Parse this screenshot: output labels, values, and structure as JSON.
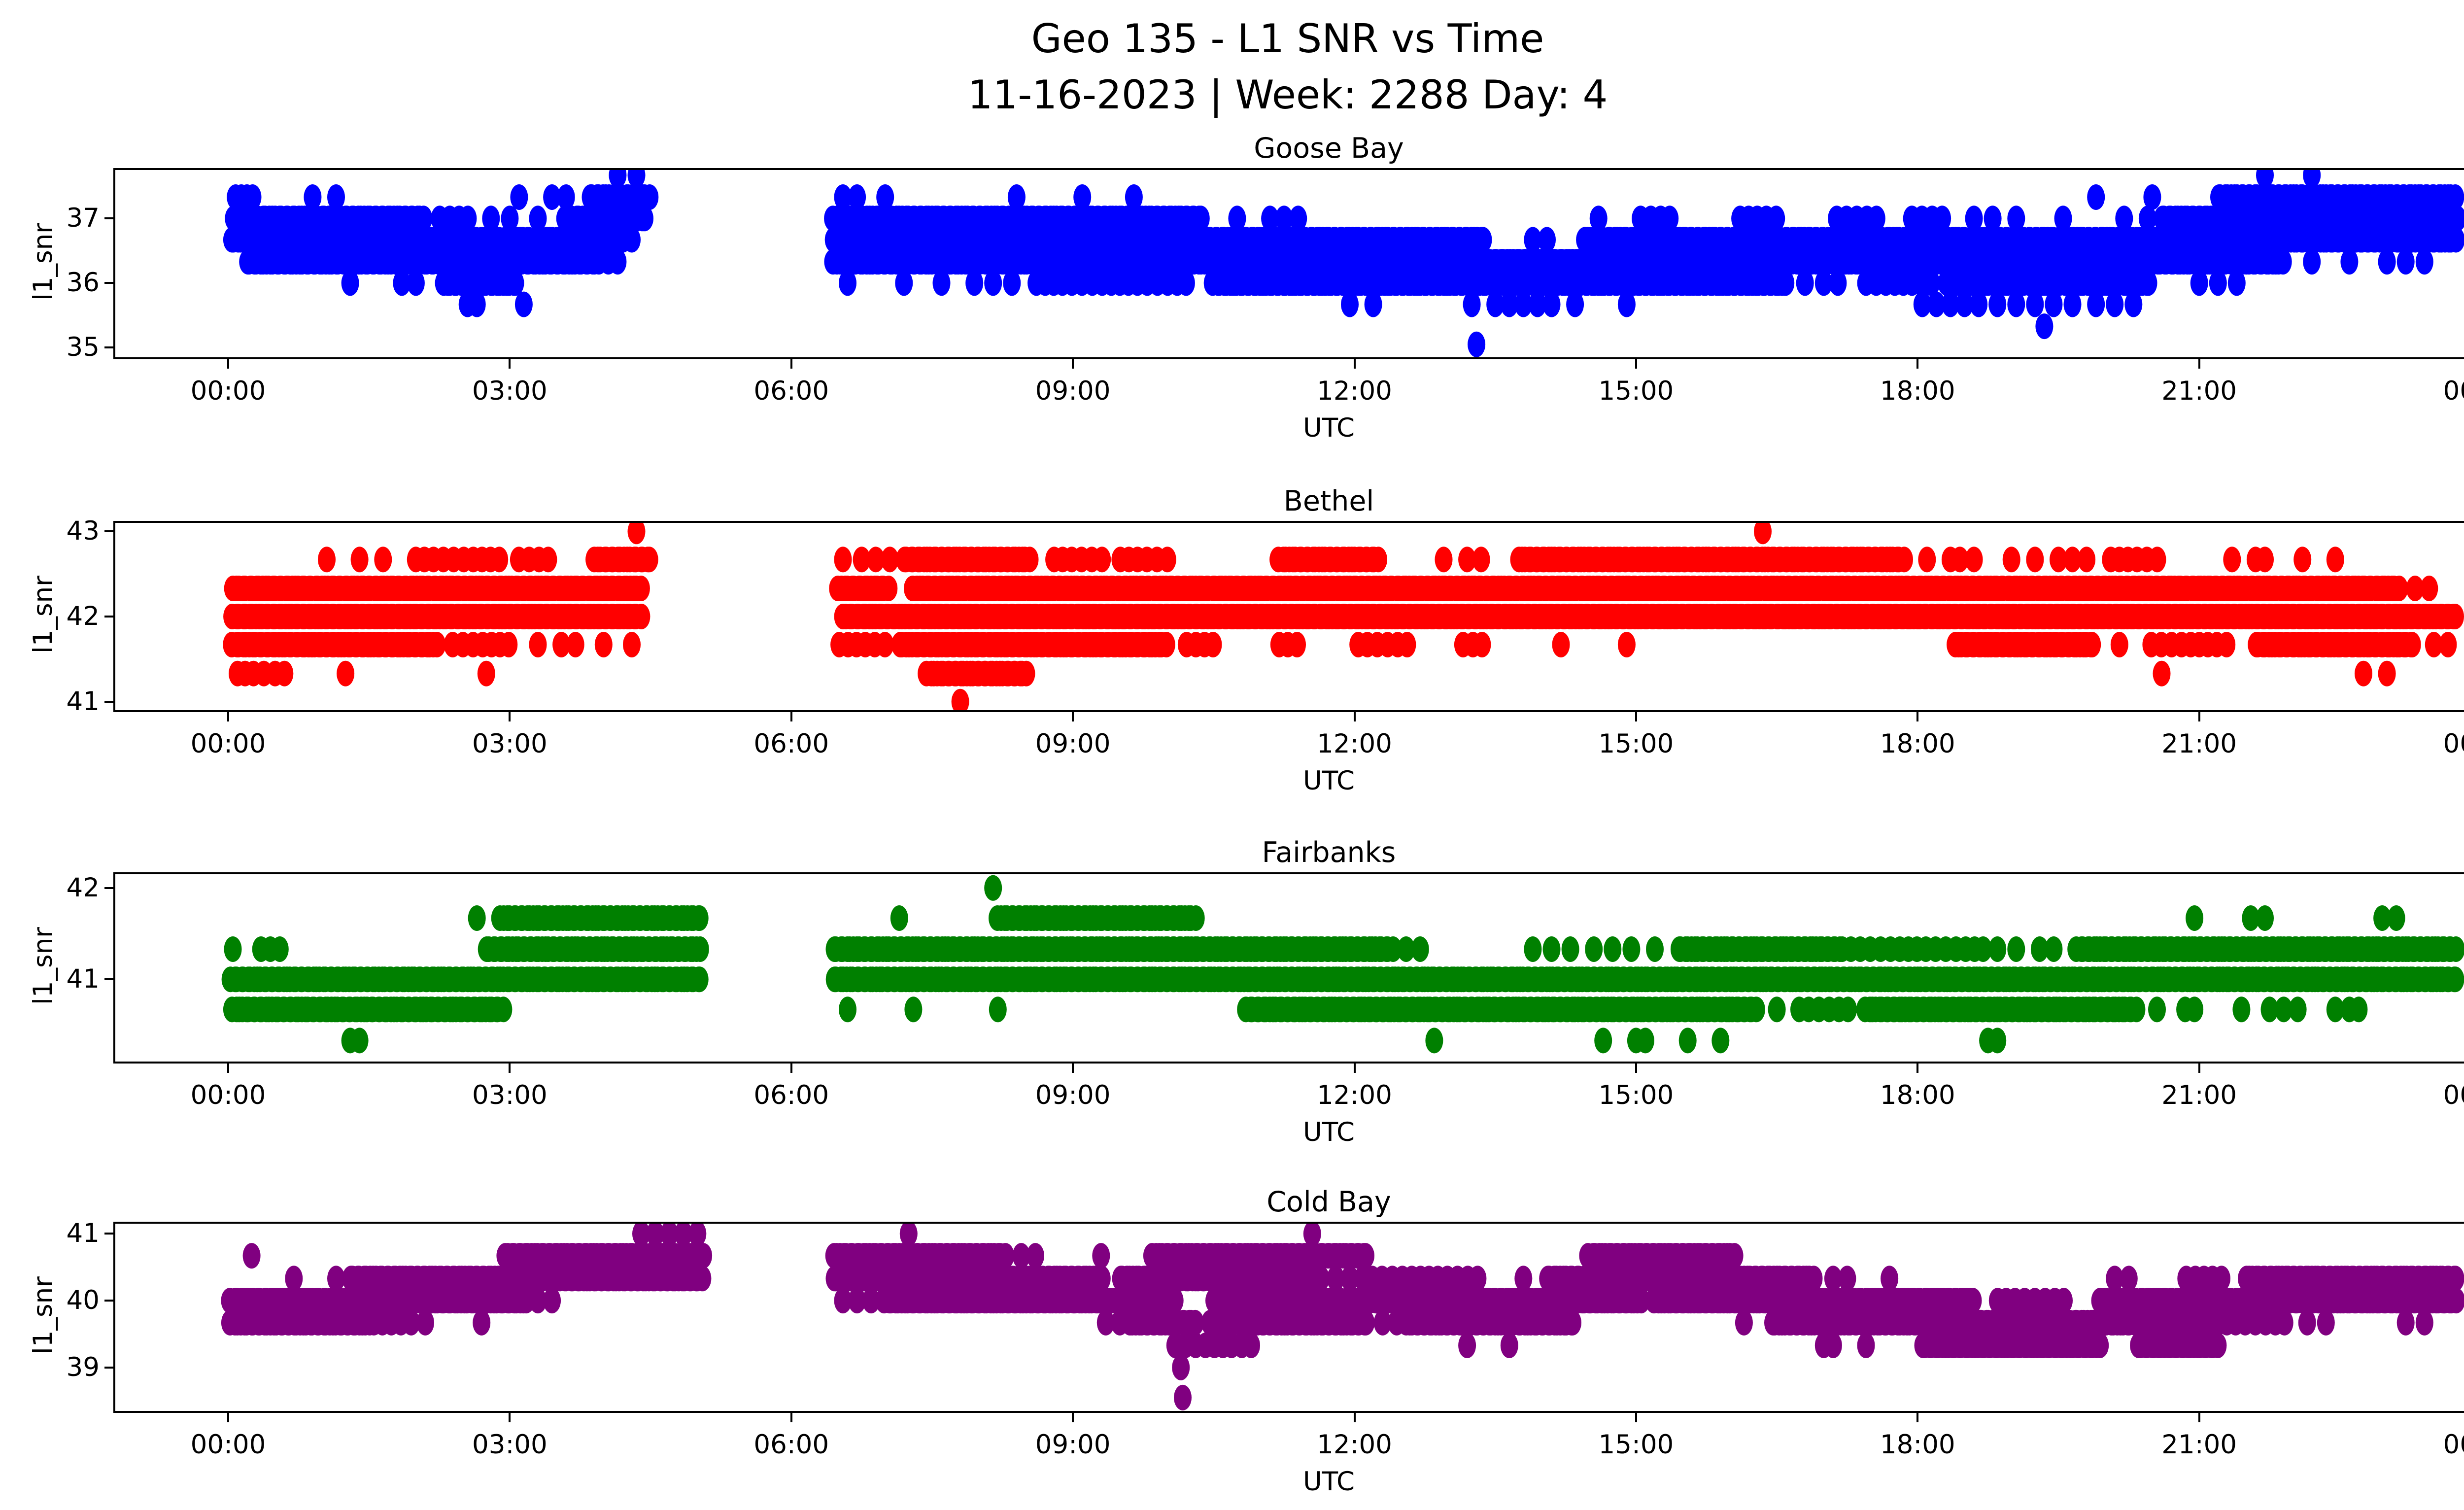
{
  "title": {
    "line1": "Geo 135 - L1 SNR vs Time",
    "line2": "11-16-2023 | Week: 2288 Day: 4"
  },
  "axes_shared": {
    "xlabel": "UTC",
    "ylabel": "l1_snr",
    "x_tick_labels": [
      "00:00",
      "03:00",
      "06:00",
      "09:00",
      "12:00",
      "15:00",
      "18:00",
      "21:00",
      "00:00"
    ],
    "x_tick_hours": [
      0,
      3,
      6,
      9,
      12,
      15,
      18,
      21,
      24
    ],
    "data_gap_hours": [
      5.05,
      6.45
    ],
    "marker": "circle",
    "grid": false,
    "legend": "none"
  },
  "chart_data": [
    {
      "type": "scatter",
      "title": "Goose Bay",
      "xlabel": "UTC",
      "ylabel": "l1_snr",
      "color": "#0000ff",
      "ylim": [
        34.85,
        37.75
      ],
      "y_ticks": [
        35,
        36,
        37
      ],
      "x_tick_labels": [
        "00:00",
        "03:00",
        "06:00",
        "09:00",
        "12:00",
        "15:00",
        "18:00",
        "21:00",
        "00:00"
      ],
      "x_tick_hours": [
        0,
        3,
        6,
        9,
        12,
        15,
        18,
        21,
        24
      ],
      "bands": [
        {
          "snr": 37.67,
          "segments": [],
          "points": [
            4.15,
            4.35,
            21.7,
            22.2
          ]
        },
        {
          "snr": 37.33,
          "segments": [
            [
              3.85,
              4.5,
              "d"
            ],
            [
              21.2,
              23.75,
              "d"
            ]
          ],
          "points": [
            0.08,
            0.14,
            0.2,
            0.26,
            0.9,
            1.15,
            3.1,
            3.45,
            3.6,
            6.55,
            6.7,
            7.0,
            8.4,
            9.1,
            9.65,
            19.9,
            20.5
          ]
        },
        {
          "snr": 37.0,
          "segments": [
            [
              0.05,
              2.1,
              "d"
            ],
            [
              2.25,
              2.6,
              "m"
            ],
            [
              3.6,
              4.45,
              "d"
            ],
            [
              6.45,
              10.4,
              "d"
            ],
            [
              15.05,
              15.35,
              "m"
            ],
            [
              16.1,
              16.55,
              "m"
            ],
            [
              17.15,
              17.6,
              "m"
            ],
            [
              17.95,
              18.25,
              "m"
            ],
            [
              20.6,
              23.75,
              "d"
            ]
          ],
          "points": [
            2.8,
            3.0,
            3.3,
            10.75,
            11.1,
            11.25,
            11.4,
            14.6,
            18.6,
            18.8,
            19.05,
            19.55,
            20.2,
            20.45
          ]
        },
        {
          "snr": 36.67,
          "segments": [
            [
              0.03,
              4.2,
              "d"
            ],
            [
              6.45,
              13.4,
              "d"
            ],
            [
              14.45,
              23.75,
              "d"
            ]
          ],
          "points": [
            4.3,
            13.9,
            14.05
          ]
        },
        {
          "snr": 36.33,
          "segments": [
            [
              0.2,
              3.95,
              "d"
            ],
            [
              6.45,
              21.9,
              "d"
            ]
          ],
          "points": [
            4.05,
            4.15,
            22.2,
            22.6,
            23.0,
            23.2,
            23.4
          ]
        },
        {
          "snr": 36.0,
          "segments": [
            [
              2.3,
              3.1,
              "d"
            ],
            [
              8.6,
              10.2,
              "m"
            ],
            [
              10.5,
              16.6,
              "d"
            ],
            [
              17.45,
              18.2,
              "m"
            ],
            [
              18.3,
              20.5,
              "d"
            ]
          ],
          "points": [
            1.3,
            1.85,
            2.0,
            6.6,
            7.2,
            7.6,
            7.95,
            8.15,
            8.35,
            16.8,
            17.0,
            17.15,
            21.0,
            21.2,
            21.4
          ]
        },
        {
          "snr": 35.67,
          "segments": [],
          "points": [
            2.55,
            2.65,
            3.15,
            11.95,
            12.2,
            13.25,
            13.5,
            13.65,
            13.8,
            13.95,
            14.1,
            14.35,
            14.9,
            18.05,
            18.2,
            18.35,
            18.5,
            18.65,
            18.85,
            19.05,
            19.25,
            19.45,
            19.65,
            19.9,
            20.1,
            20.3
          ]
        },
        {
          "snr": 35.33,
          "segments": [],
          "points": [
            19.35
          ]
        },
        {
          "snr": 35.05,
          "segments": [],
          "points": [
            13.3
          ]
        }
      ]
    },
    {
      "type": "scatter",
      "title": "Bethel",
      "xlabel": "UTC",
      "ylabel": "l1_snr",
      "color": "#ff0000",
      "ylim": [
        40.9,
        43.1
      ],
      "y_ticks": [
        41,
        42,
        43
      ],
      "x_tick_labels": [
        "00:00",
        "03:00",
        "06:00",
        "09:00",
        "12:00",
        "15:00",
        "18:00",
        "21:00",
        "00:00"
      ],
      "x_tick_hours": [
        0,
        3,
        6,
        9,
        12,
        15,
        18,
        21,
        24
      ],
      "bands": [
        {
          "snr": 43.0,
          "segments": [],
          "points": [
            4.35,
            16.35
          ]
        },
        {
          "snr": 42.67,
          "segments": [
            [
              2.0,
              2.3,
              "m"
            ],
            [
              2.4,
              2.95,
              "m"
            ],
            [
              3.1,
              3.45,
              "m"
            ],
            [
              3.9,
              4.5,
              "d"
            ],
            [
              7.2,
              8.55,
              "d"
            ],
            [
              8.8,
              9.3,
              "m"
            ],
            [
              9.5,
              10.0,
              "m"
            ],
            [
              11.2,
              12.25,
              "d"
            ],
            [
              13.75,
              17.85,
              "d"
            ],
            [
              20.05,
              20.55,
              "m"
            ]
          ],
          "points": [
            1.05,
            1.4,
            1.65,
            6.55,
            6.75,
            6.9,
            7.05,
            12.95,
            13.2,
            13.35,
            18.1,
            18.35,
            18.45,
            18.6,
            19.0,
            19.25,
            19.5,
            19.65,
            19.8,
            21.35,
            21.6,
            21.7,
            22.1,
            22.45
          ]
        },
        {
          "snr": 42.33,
          "segments": [
            [
              0.05,
              4.4,
              "d"
            ],
            [
              6.5,
              7.05,
              "d"
            ],
            [
              7.3,
              23.15,
              "d"
            ]
          ],
          "points": [
            23.3,
            23.45
          ]
        },
        {
          "snr": 42.0,
          "segments": [
            [
              0.05,
              4.4,
              "d"
            ],
            [
              6.55,
              23.75,
              "d"
            ]
          ],
          "points": []
        },
        {
          "snr": 41.67,
          "segments": [
            [
              0.05,
              2.25,
              "d"
            ],
            [
              2.4,
              3.05,
              "m"
            ],
            [
              6.5,
              7.0,
              "m"
            ],
            [
              7.15,
              10.0,
              "d"
            ],
            [
              10.2,
              10.5,
              "m"
            ],
            [
              11.2,
              11.45,
              "m"
            ],
            [
              12.05,
              12.55,
              "m"
            ],
            [
              13.15,
              13.4,
              "m"
            ],
            [
              18.4,
              19.9,
              "d"
            ],
            [
              20.5,
              21.3,
              "m"
            ],
            [
              21.6,
              23.3,
              "d"
            ]
          ],
          "points": [
            3.3,
            3.55,
            3.7,
            4.0,
            4.3,
            14.2,
            14.9,
            20.15,
            23.5,
            23.65
          ]
        },
        {
          "snr": 41.33,
          "segments": [
            [
              7.45,
              8.5,
              "d"
            ]
          ],
          "points": [
            0.1,
            0.18,
            0.27,
            0.38,
            0.5,
            0.6,
            1.25,
            2.75,
            20.6,
            22.75,
            23.0
          ]
        },
        {
          "snr": 41.0,
          "segments": [],
          "points": [
            7.8
          ]
        }
      ]
    },
    {
      "type": "scatter",
      "title": "Fairbanks",
      "xlabel": "UTC",
      "ylabel": "l1_snr",
      "color": "#008000",
      "ylim": [
        40.1,
        42.15
      ],
      "y_ticks": [
        41,
        42
      ],
      "x_tick_labels": [
        "00:00",
        "03:00",
        "06:00",
        "09:00",
        "12:00",
        "15:00",
        "18:00",
        "21:00",
        "00:00"
      ],
      "x_tick_hours": [
        0,
        3,
        6,
        9,
        12,
        15,
        18,
        21,
        24
      ],
      "bands": [
        {
          "snr": 42.0,
          "segments": [],
          "points": [
            8.15
          ]
        },
        {
          "snr": 41.67,
          "segments": [
            [
              2.9,
              5.05,
              "d"
            ],
            [
              8.2,
              10.3,
              "d"
            ]
          ],
          "points": [
            2.65,
            7.15,
            20.95,
            21.55,
            21.7,
            22.95,
            23.1
          ]
        },
        {
          "snr": 41.33,
          "segments": [
            [
              2.75,
              5.05,
              "d"
            ],
            [
              6.45,
              12.4,
              "d"
            ],
            [
              15.45,
              17.2,
              "d"
            ],
            [
              17.3,
              17.9,
              "m"
            ],
            [
              18.0,
              18.7,
              "m"
            ],
            [
              19.7,
              23.75,
              "d"
            ]
          ],
          "points": [
            0.05,
            0.35,
            0.45,
            0.55,
            12.55,
            12.7,
            13.9,
            14.1,
            14.3,
            14.55,
            14.75,
            14.95,
            15.2,
            18.85,
            19.05,
            19.3,
            19.45
          ]
        },
        {
          "snr": 41.0,
          "segments": [
            [
              0.03,
              5.05,
              "d"
            ],
            [
              6.45,
              23.75,
              "d"
            ]
          ],
          "points": []
        },
        {
          "snr": 40.67,
          "segments": [
            [
              0.05,
              2.95,
              "d"
            ],
            [
              10.85,
              16.3,
              "d"
            ],
            [
              16.75,
              17.3,
              "m"
            ],
            [
              17.45,
              20.35,
              "d"
            ]
          ],
          "points": [
            6.6,
            7.3,
            8.2,
            16.5,
            20.55,
            20.85,
            20.95,
            21.45,
            21.75,
            21.9,
            22.05,
            22.45,
            22.6,
            22.7
          ]
        },
        {
          "snr": 40.33,
          "segments": [],
          "points": [
            1.3,
            1.4,
            12.85,
            14.65,
            15.0,
            15.1,
            15.55,
            15.9,
            18.75,
            18.85
          ]
        }
      ]
    },
    {
      "type": "scatter",
      "title": "Cold Bay",
      "xlabel": "UTC",
      "ylabel": "l1_snr",
      "color": "#800080",
      "ylim": [
        38.35,
        41.15
      ],
      "y_ticks": [
        39,
        40,
        41
      ],
      "x_tick_labels": [
        "00:00",
        "03:00",
        "06:00",
        "09:00",
        "12:00",
        "15:00",
        "18:00",
        "21:00",
        "00:00"
      ],
      "x_tick_hours": [
        0,
        3,
        6,
        9,
        12,
        15,
        18,
        21,
        24
      ],
      "bands": [
        {
          "snr": 41.0,
          "segments": [],
          "points": [
            4.4,
            4.55,
            4.7,
            4.85,
            5.0,
            7.25,
            11.55
          ]
        },
        {
          "snr": 40.67,
          "segments": [
            [
              2.95,
              5.05,
              "d"
            ],
            [
              6.45,
              8.3,
              "d"
            ],
            [
              9.85,
              12.15,
              "d"
            ],
            [
              14.5,
              16.05,
              "d"
            ]
          ],
          "points": [
            0.25,
            8.45,
            8.6,
            9.3
          ]
        },
        {
          "snr": 40.33,
          "segments": [
            [
              1.3,
              5.05,
              "d"
            ],
            [
              6.45,
              9.35,
              "d"
            ],
            [
              9.5,
              11.65,
              "d"
            ],
            [
              12.1,
              13.35,
              "m"
            ],
            [
              14.05,
              16.9,
              "d"
            ],
            [
              20.85,
              21.3,
              "m"
            ],
            [
              21.5,
              23.75,
              "d"
            ]
          ],
          "points": [
            0.7,
            1.15,
            11.8,
            11.95,
            13.8,
            17.1,
            17.25,
            17.7,
            20.1,
            20.25
          ]
        },
        {
          "snr": 40.0,
          "segments": [
            [
              0.03,
              3.2,
              "d"
            ],
            [
              7.0,
              10.1,
              "d"
            ],
            [
              10.5,
              15.05,
              "d"
            ],
            [
              15.2,
              18.6,
              "d"
            ],
            [
              18.85,
              19.55,
              "m"
            ],
            [
              19.95,
              23.75,
              "d"
            ]
          ],
          "points": [
            3.3,
            3.45,
            6.55,
            6.7,
            6.85
          ]
        },
        {
          "snr": 39.67,
          "segments": [
            [
              0.03,
              1.5,
              "d"
            ],
            [
              1.55,
              1.85,
              "m"
            ],
            [
              9.6,
              10.3,
              "d"
            ],
            [
              10.45,
              12.15,
              "d"
            ],
            [
              12.55,
              14.35,
              "d"
            ],
            [
              16.45,
              21.05,
              "d"
            ],
            [
              21.1,
              21.9,
              "m"
            ]
          ],
          "points": [
            1.95,
            2.1,
            2.7,
            9.35,
            9.5,
            12.3,
            12.45,
            16.15,
            22.15,
            22.35,
            23.2,
            23.4
          ]
        },
        {
          "snr": 39.33,
          "segments": [
            [
              10.1,
              10.7,
              "m"
            ],
            [
              18.05,
              19.95,
              "d"
            ],
            [
              20.35,
              21.2,
              "d"
            ]
          ],
          "points": [
            10.8,
            10.9,
            13.2,
            13.65,
            17.0,
            17.1,
            17.45
          ]
        },
        {
          "snr": 39.0,
          "segments": [],
          "points": [
            10.15
          ]
        },
        {
          "snr": 38.55,
          "segments": [],
          "points": [
            10.17
          ]
        }
      ]
    }
  ]
}
